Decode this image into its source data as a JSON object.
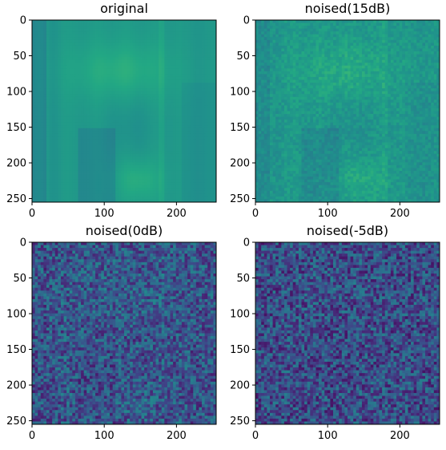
{
  "chart_data": [
    {
      "type": "heatmap",
      "title": "original",
      "colormap": "viridis",
      "noise_level": 0.0,
      "value_range": [
        0.34,
        0.7
      ],
      "xlim": [
        0,
        255
      ],
      "ylim": [
        255,
        0
      ],
      "x_ticks": [
        0,
        100,
        200
      ],
      "y_ticks": [
        0,
        50,
        100,
        150,
        200,
        250
      ]
    },
    {
      "type": "heatmap",
      "title": "noised(15dB)",
      "colormap": "viridis",
      "noise_level": 0.2,
      "value_range": [
        0.34,
        0.7
      ],
      "xlim": [
        0,
        255
      ],
      "ylim": [
        255,
        0
      ],
      "x_ticks": [
        0,
        100,
        200
      ],
      "y_ticks": [
        0,
        50,
        100,
        150,
        200,
        250
      ]
    },
    {
      "type": "heatmap",
      "title": "noised(0dB)",
      "colormap": "viridis",
      "noise_level": 0.7,
      "value_range": [
        0.08,
        0.45
      ],
      "xlim": [
        0,
        255
      ],
      "ylim": [
        255,
        0
      ],
      "x_ticks": [
        0,
        100,
        200
      ],
      "y_ticks": [
        0,
        50,
        100,
        150,
        200,
        250
      ]
    },
    {
      "type": "heatmap",
      "title": "noised(-5dB)",
      "colormap": "viridis",
      "noise_level": 0.85,
      "value_range": [
        0.08,
        0.4
      ],
      "xlim": [
        0,
        255
      ],
      "ylim": [
        255,
        0
      ],
      "x_ticks": [
        0,
        100,
        200
      ],
      "y_ticks": [
        0,
        50,
        100,
        150,
        200,
        250
      ]
    }
  ]
}
